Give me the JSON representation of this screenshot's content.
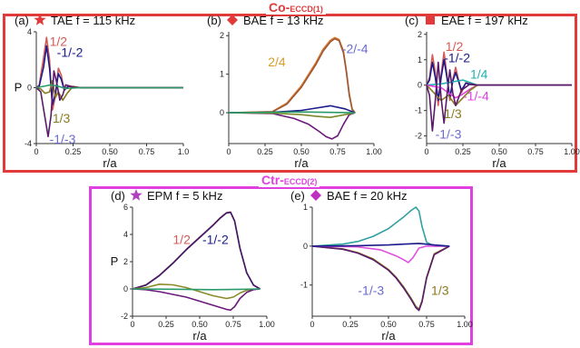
{
  "groups": {
    "co": {
      "title": "Co-",
      "sub": "ECCD(1)",
      "color": "#e03a3a"
    },
    "ctr": {
      "title": "Ctr-",
      "sub": "ECCD(2)",
      "color": "#e040e0"
    }
  },
  "chart_data": [
    {
      "id": "a",
      "type": "line",
      "panel_label": "(a)",
      "marker": "star",
      "marker_color": "#e03a3a",
      "title": "TAE f = 115 kHz",
      "xlabel": "r/a",
      "ylabel": "P",
      "xlim": [
        0,
        1.0
      ],
      "ylim": [
        -4,
        4
      ],
      "xticks": [
        "0",
        "0.25",
        "0.50",
        "0.75",
        "1.0"
      ],
      "yticks": [
        "-4",
        "0",
        "4"
      ],
      "series": [
        {
          "name": "1/2",
          "color": "#d55a55",
          "x": [
            0,
            0.02,
            0.05,
            0.07,
            0.09,
            0.11,
            0.13,
            0.15,
            0.17,
            0.19,
            0.22,
            0.26,
            0.3,
            1.0
          ],
          "y": [
            0,
            0.2,
            2.2,
            3.6,
            2.0,
            -1.6,
            -0.6,
            1.4,
            0.9,
            -0.2,
            0.15,
            0.05,
            0,
            0
          ]
        },
        {
          "name": "-1/-2",
          "color": "#1a1a8a",
          "x": [
            0,
            0.02,
            0.05,
            0.07,
            0.09,
            0.11,
            0.13,
            0.15,
            0.17,
            0.19,
            0.22,
            0.26,
            0.3,
            1.0
          ],
          "y": [
            0,
            0.1,
            1.5,
            3.0,
            1.4,
            -1.2,
            -0.4,
            1.0,
            0.6,
            -0.15,
            0.1,
            0.03,
            0,
            0
          ]
        },
        {
          "name": "1/3",
          "color": "#8a7a20",
          "x": [
            0,
            0.03,
            0.06,
            0.09,
            0.11,
            0.13,
            0.15,
            0.18,
            0.21,
            0.25,
            0.3,
            1.0
          ],
          "y": [
            0,
            -0.1,
            -0.4,
            -0.3,
            0.5,
            -0.7,
            -0.3,
            -0.9,
            -0.4,
            0.1,
            0,
            0
          ]
        },
        {
          "name": "-1/-3",
          "color": "#5a1a6a",
          "x": [
            0,
            0.03,
            0.06,
            0.08,
            0.1,
            0.12,
            0.14,
            0.16,
            0.18,
            0.2,
            0.24,
            0.3,
            1.0
          ],
          "y": [
            0,
            -0.3,
            -2.2,
            -3.5,
            -2.0,
            1.2,
            0.3,
            -0.9,
            -0.5,
            0.2,
            0.05,
            0,
            0
          ]
        },
        {
          "name": "",
          "color": "#2a9a6a",
          "x": [
            0,
            0.05,
            0.1,
            0.15,
            0.2,
            0.3,
            1.0
          ],
          "y": [
            0,
            0.1,
            0.2,
            0.1,
            -0.05,
            0,
            0
          ]
        }
      ],
      "labels": [
        {
          "text": "1/2",
          "color": "#d55a55",
          "x": 0.09,
          "y": 3.0
        },
        {
          "text": "-1/-2",
          "color": "#1a1a8a",
          "x": 0.14,
          "y": 2.2
        },
        {
          "text": "1/3",
          "color": "#8a7a20",
          "x": 0.11,
          "y": -2.5
        },
        {
          "text": "-1/-3",
          "color": "#6a6ad0",
          "x": 0.09,
          "y": -4.0
        }
      ]
    },
    {
      "id": "b",
      "type": "line",
      "panel_label": "(b)",
      "marker": "diamond",
      "marker_color": "#e03a3a",
      "title": "BAE f = 13 kHz",
      "xlabel": "r/a",
      "ylabel": "",
      "xlim": [
        0,
        1.0
      ],
      "ylim": [
        -0.8,
        2.1
      ],
      "xticks": [
        "0",
        "0.25",
        "0.50",
        "0.75",
        "1.00"
      ],
      "yticks": [
        "0",
        "1",
        "2"
      ],
      "series": [
        {
          "name": "2/4",
          "color": "#e07a2a",
          "x": [
            0,
            0.3,
            0.4,
            0.5,
            0.6,
            0.65,
            0.7,
            0.73,
            0.76,
            0.79,
            0.81,
            0.83,
            0.85,
            0.87
          ],
          "y": [
            0,
            0.03,
            0.25,
            0.7,
            1.3,
            1.65,
            1.88,
            1.95,
            1.9,
            1.6,
            1.1,
            0.5,
            0.1,
            0
          ]
        },
        {
          "name": "-2/-4",
          "color": "#9a5a3a",
          "x": [
            0,
            0.3,
            0.4,
            0.5,
            0.6,
            0.65,
            0.7,
            0.73,
            0.76,
            0.79,
            0.81,
            0.83,
            0.85,
            0.87
          ],
          "y": [
            0,
            0.02,
            0.22,
            0.66,
            1.25,
            1.6,
            1.84,
            1.92,
            1.87,
            1.55,
            1.05,
            0.45,
            0.08,
            0
          ]
        },
        {
          "name": "",
          "color": "#6a1a7a",
          "x": [
            0,
            0.3,
            0.45,
            0.55,
            0.62,
            0.67,
            0.71,
            0.75,
            0.79,
            0.83,
            0.87
          ],
          "y": [
            0,
            -0.02,
            -0.15,
            -0.3,
            -0.48,
            -0.62,
            -0.68,
            -0.6,
            -0.3,
            -0.05,
            0
          ]
        },
        {
          "name": "",
          "color": "#1a1a8a",
          "x": [
            0,
            0.3,
            0.5,
            0.6,
            0.7,
            0.8,
            0.87
          ],
          "y": [
            0,
            0.01,
            0.06,
            0.12,
            0.18,
            0.1,
            0
          ]
        },
        {
          "name": "",
          "color": "#7a8a2a",
          "x": [
            0,
            0.3,
            0.5,
            0.6,
            0.7,
            0.8,
            0.87
          ],
          "y": [
            0,
            -0.01,
            -0.05,
            -0.09,
            -0.12,
            -0.05,
            0
          ]
        },
        {
          "name": "",
          "color": "#2a9a6a",
          "x": [
            0,
            0.5,
            0.87
          ],
          "y": [
            0,
            0.02,
            0
          ]
        }
      ],
      "labels": [
        {
          "text": "2/4",
          "color": "#e09a2a",
          "x": 0.27,
          "y": 1.2
        },
        {
          "text": "-2/-4",
          "color": "#6a6ad0",
          "x": 0.78,
          "y": 1.55
        }
      ]
    },
    {
      "id": "c",
      "type": "line",
      "panel_label": "(c)",
      "marker": "square",
      "marker_color": "#e03a3a",
      "title": "EAE f = 197 kHz",
      "xlabel": "r/a",
      "ylabel": "",
      "xlim": [
        0,
        1.0
      ],
      "ylim": [
        -2.3,
        2.1
      ],
      "xticks": [
        "0",
        "0.25",
        "0.50",
        "0.75",
        "1.00"
      ],
      "yticks": [
        "-2",
        "-1",
        "0",
        "1",
        "2"
      ],
      "series": [
        {
          "name": "1/2",
          "color": "#d55a55",
          "x": [
            0,
            0.02,
            0.04,
            0.06,
            0.08,
            0.1,
            0.12,
            0.14,
            0.16,
            0.18,
            0.2,
            0.22,
            0.24,
            0.27,
            0.3,
            0.35,
            1.0
          ],
          "y": [
            0,
            0.3,
            1.2,
            0.5,
            -0.8,
            0.4,
            1.3,
            0.4,
            -0.6,
            0.2,
            0.7,
            0.2,
            -0.3,
            0.1,
            0.05,
            0,
            0
          ]
        },
        {
          "name": "-1/-2",
          "color": "#1a1a8a",
          "x": [
            0,
            0.02,
            0.04,
            0.06,
            0.08,
            0.1,
            0.12,
            0.14,
            0.16,
            0.18,
            0.2,
            0.22,
            0.24,
            0.27,
            0.3,
            0.35,
            1.0
          ],
          "y": [
            0,
            0.2,
            0.9,
            0.3,
            -0.6,
            0.3,
            1.0,
            0.3,
            -0.5,
            0.15,
            0.5,
            0.15,
            -0.2,
            0.08,
            0.03,
            0,
            0
          ]
        },
        {
          "name": "1/4",
          "color": "#20b0b0",
          "x": [
            0,
            0.1,
            0.2,
            0.25,
            0.3,
            0.35,
            1.0
          ],
          "y": [
            0,
            0.05,
            0.15,
            0.2,
            0.1,
            0,
            0
          ]
        },
        {
          "name": "-1/-4",
          "color": "#e040e0",
          "x": [
            0,
            0.1,
            0.15,
            0.2,
            0.25,
            0.3,
            0.35,
            1.0
          ],
          "y": [
            0,
            -0.1,
            -0.3,
            -0.5,
            -0.35,
            -0.15,
            0,
            0
          ]
        },
        {
          "name": "1/3",
          "color": "#8a7a20",
          "x": [
            0,
            0.05,
            0.1,
            0.15,
            0.2,
            0.25,
            0.3,
            0.35,
            1.0
          ],
          "y": [
            0,
            -0.3,
            -0.6,
            -0.4,
            -0.8,
            -0.5,
            -0.2,
            0,
            0
          ]
        },
        {
          "name": "-1/-3",
          "color": "#5a1a6a",
          "x": [
            0,
            0.02,
            0.04,
            0.06,
            0.08,
            0.1,
            0.12,
            0.14,
            0.16,
            0.18,
            0.2,
            0.24,
            0.3,
            0.35,
            1.0
          ],
          "y": [
            0,
            -0.4,
            -1.8,
            -0.6,
            0.9,
            -0.5,
            -1.5,
            -0.4,
            0.6,
            -0.3,
            -0.8,
            -0.2,
            0.05,
            0,
            0
          ]
        }
      ],
      "labels": [
        {
          "text": "1/2",
          "color": "#d55a55",
          "x": 0.13,
          "y": 1.35
        },
        {
          "text": "-1/-2",
          "color": "#1a1a8a",
          "x": 0.12,
          "y": 0.9
        },
        {
          "text": "1/4",
          "color": "#20b0b0",
          "x": 0.3,
          "y": 0.25
        },
        {
          "text": "-1/-4",
          "color": "#e040e0",
          "x": 0.25,
          "y": -0.6
        },
        {
          "text": "1/3",
          "color": "#8a7a20",
          "x": 0.12,
          "y": -1.3
        },
        {
          "text": "-1/-3",
          "color": "#6a6ad0",
          "x": 0.06,
          "y": -2.1
        }
      ]
    },
    {
      "id": "d",
      "type": "line",
      "panel_label": "(d)",
      "marker": "star",
      "marker_color": "#b040c0",
      "title": "EPM f = 5 kHz",
      "xlabel": "r/a",
      "ylabel": "P",
      "xlim": [
        0,
        1.0
      ],
      "ylim": [
        -2,
        6
      ],
      "xticks": [
        "0",
        "0.25",
        "0.50",
        "0.75",
        "1.00"
      ],
      "yticks": [
        "-2",
        "0",
        "2",
        "4",
        "6"
      ],
      "series": [
        {
          "name": "1/2",
          "color": "#d55a55",
          "x": [
            0,
            0.1,
            0.2,
            0.3,
            0.4,
            0.5,
            0.6,
            0.65,
            0.7,
            0.73,
            0.76,
            0.8,
            0.85,
            0.9,
            0.95
          ],
          "y": [
            0,
            0.3,
            1.0,
            1.9,
            2.9,
            3.8,
            4.7,
            5.2,
            5.6,
            5.65,
            5.0,
            3.0,
            1.2,
            0.3,
            0
          ]
        },
        {
          "name": "-1/-2",
          "color": "#3a1a6a",
          "x": [
            0,
            0.1,
            0.2,
            0.3,
            0.4,
            0.5,
            0.6,
            0.65,
            0.7,
            0.73,
            0.76,
            0.8,
            0.85,
            0.9,
            0.95
          ],
          "y": [
            0,
            0.28,
            0.98,
            1.87,
            2.87,
            3.77,
            4.67,
            5.17,
            5.57,
            5.62,
            4.97,
            2.97,
            1.18,
            0.28,
            0
          ]
        },
        {
          "name": "",
          "color": "#8a8a2a",
          "x": [
            0,
            0.1,
            0.2,
            0.3,
            0.4,
            0.5,
            0.6,
            0.7,
            0.75,
            0.8,
            0.85,
            0.9,
            0.95
          ],
          "y": [
            0,
            0.1,
            0.35,
            0.3,
            0.1,
            -0.2,
            -0.5,
            -0.7,
            -0.6,
            -0.3,
            -0.1,
            -0.02,
            0
          ]
        },
        {
          "name": "",
          "color": "#6a1a7a",
          "x": [
            0,
            0.1,
            0.2,
            0.3,
            0.4,
            0.5,
            0.6,
            0.7,
            0.73,
            0.76,
            0.8,
            0.85,
            0.9,
            0.95
          ],
          "y": [
            0,
            -0.05,
            -0.2,
            -0.4,
            -0.6,
            -0.9,
            -1.2,
            -1.5,
            -1.55,
            -1.3,
            -0.7,
            -0.25,
            -0.05,
            0
          ]
        },
        {
          "name": "",
          "color": "#2a9a6a",
          "x": [
            0,
            0.3,
            0.6,
            0.8,
            0.95
          ],
          "y": [
            0,
            -0.02,
            -0.05,
            -0.03,
            0
          ]
        }
      ],
      "labels": [
        {
          "text": "1/2",
          "color": "#d55a55",
          "x": 0.3,
          "y": 3.3
        },
        {
          "text": "-1/-2",
          "color": "#1a1a8a",
          "x": 0.52,
          "y": 3.3
        }
      ]
    },
    {
      "id": "e",
      "type": "line",
      "panel_label": "(e)",
      "marker": "diamond",
      "marker_color": "#c030c0",
      "title": "BAE f = 20 kHz",
      "xlabel": "r/a",
      "ylabel": "",
      "xlim": [
        0,
        1.0
      ],
      "ylim": [
        -1.8,
        1.0
      ],
      "xticks": [
        "0",
        "0.25",
        "0.50",
        "0.75",
        "1.00"
      ],
      "yticks": [
        "-1",
        "0",
        "1"
      ],
      "series": [
        {
          "name": "",
          "color": "#30a0a0",
          "x": [
            0,
            0.2,
            0.3,
            0.4,
            0.5,
            0.55,
            0.6,
            0.65,
            0.68,
            0.7,
            0.72,
            0.75,
            0.8,
            0.9
          ],
          "y": [
            0,
            0.05,
            0.12,
            0.25,
            0.45,
            0.6,
            0.75,
            0.92,
            1.0,
            0.9,
            0.5,
            0.1,
            0,
            0
          ]
        },
        {
          "name": "1/3",
          "color": "#8a7a20",
          "x": [
            0,
            0.2,
            0.3,
            0.4,
            0.5,
            0.55,
            0.6,
            0.65,
            0.68,
            0.7,
            0.72,
            0.75,
            0.8,
            0.9
          ],
          "y": [
            0,
            -0.07,
            -0.17,
            -0.33,
            -0.6,
            -0.8,
            -1.05,
            -1.35,
            -1.55,
            -1.62,
            -1.4,
            -0.8,
            -0.2,
            0
          ]
        },
        {
          "name": "-1/-3",
          "color": "#5a1a6a",
          "x": [
            0,
            0.2,
            0.3,
            0.4,
            0.5,
            0.55,
            0.6,
            0.65,
            0.68,
            0.7,
            0.72,
            0.75,
            0.8,
            0.9
          ],
          "y": [
            0,
            -0.08,
            -0.18,
            -0.35,
            -0.62,
            -0.82,
            -1.08,
            -1.38,
            -1.58,
            -1.65,
            -1.43,
            -0.82,
            -0.22,
            0
          ]
        },
        {
          "name": "",
          "color": "#e050e0",
          "x": [
            0,
            0.3,
            0.45,
            0.55,
            0.6,
            0.63,
            0.66,
            0.7,
            0.75,
            0.9
          ],
          "y": [
            0,
            -0.02,
            -0.1,
            -0.25,
            -0.35,
            -0.42,
            -0.3,
            -0.05,
            0,
            0
          ]
        },
        {
          "name": "",
          "color": "#1a1a8a",
          "x": [
            0,
            0.3,
            0.5,
            0.6,
            0.7,
            0.8,
            0.9
          ],
          "y": [
            0,
            0.01,
            0.03,
            0.05,
            0.07,
            0.03,
            0
          ]
        }
      ],
      "labels": [
        {
          "text": "-1/-3",
          "color": "#6a6ad0",
          "x": 0.3,
          "y": -1.25
        },
        {
          "text": "1/3",
          "color": "#8a7a20",
          "x": 0.78,
          "y": -1.25
        }
      ]
    }
  ]
}
